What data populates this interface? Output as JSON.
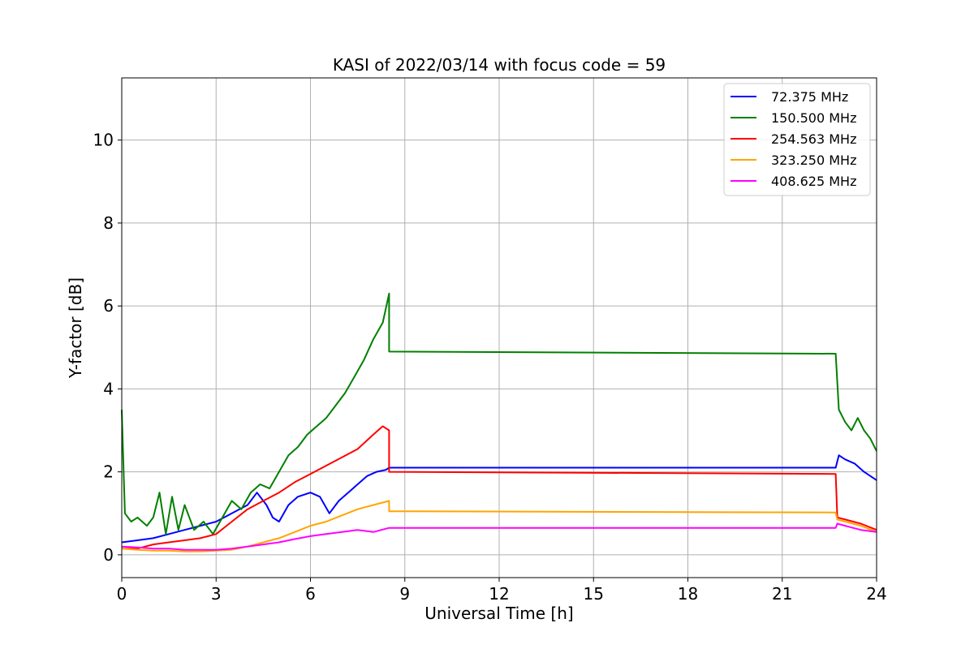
{
  "chart_data": {
    "type": "line",
    "title": "KASI of 2022/03/14 with focus code = 59",
    "xlabel": "Universal Time [h]",
    "ylabel": "Y-factor [dB]",
    "xlim": [
      0,
      24
    ],
    "ylim": [
      -0.55,
      11.5
    ],
    "xticks": [
      0,
      3,
      6,
      9,
      12,
      15,
      18,
      21,
      24
    ],
    "yticks": [
      0,
      2,
      4,
      6,
      8,
      10
    ],
    "grid": true,
    "legend_position": "top-right",
    "series": [
      {
        "name": " 72.375 MHz",
        "color": "#0000ff",
        "x": [
          0.0,
          0.5,
          1.0,
          1.5,
          2.0,
          2.5,
          3.0,
          3.5,
          4.0,
          4.3,
          4.6,
          4.8,
          5.0,
          5.3,
          5.6,
          6.0,
          6.3,
          6.6,
          6.9,
          7.2,
          7.5,
          7.8,
          8.1,
          8.4,
          8.5,
          22.7,
          22.8,
          23.0,
          23.3,
          23.6,
          24.0
        ],
        "y": [
          0.3,
          0.35,
          0.4,
          0.5,
          0.6,
          0.7,
          0.8,
          1.0,
          1.2,
          1.5,
          1.2,
          0.9,
          0.8,
          1.2,
          1.4,
          1.5,
          1.4,
          1.0,
          1.3,
          1.5,
          1.7,
          1.9,
          2.0,
          2.05,
          2.1,
          2.1,
          2.4,
          2.3,
          2.2,
          2.0,
          1.8
        ]
      },
      {
        "name": "150.500 MHz",
        "color": "#008000",
        "x": [
          0.0,
          0.1,
          0.3,
          0.5,
          0.8,
          1.0,
          1.2,
          1.4,
          1.6,
          1.8,
          2.0,
          2.3,
          2.6,
          2.9,
          3.2,
          3.5,
          3.8,
          4.1,
          4.4,
          4.7,
          5.0,
          5.3,
          5.6,
          5.9,
          6.2,
          6.5,
          6.8,
          7.1,
          7.4,
          7.7,
          8.0,
          8.3,
          8.5,
          8.5,
          22.7,
          22.8,
          23.0,
          23.2,
          23.4,
          23.6,
          23.8,
          24.0
        ],
        "y": [
          3.5,
          1.0,
          0.8,
          0.9,
          0.7,
          0.9,
          1.5,
          0.5,
          1.4,
          0.6,
          1.2,
          0.6,
          0.8,
          0.5,
          0.9,
          1.3,
          1.1,
          1.5,
          1.7,
          1.6,
          2.0,
          2.4,
          2.6,
          2.9,
          3.1,
          3.3,
          3.6,
          3.9,
          4.3,
          4.7,
          5.2,
          5.6,
          6.3,
          4.9,
          4.85,
          3.5,
          3.2,
          3.0,
          3.3,
          3.0,
          2.8,
          2.5
        ]
      },
      {
        "name": "254.563 MHz",
        "color": "#ff0000",
        "x": [
          0.0,
          0.5,
          1.0,
          1.5,
          2.0,
          2.5,
          3.0,
          3.5,
          4.0,
          4.5,
          5.0,
          5.5,
          6.0,
          6.5,
          7.0,
          7.5,
          8.0,
          8.3,
          8.5,
          8.5,
          22.7,
          22.75,
          23.0,
          23.5,
          24.0
        ],
        "y": [
          0.15,
          0.15,
          0.25,
          0.3,
          0.35,
          0.4,
          0.5,
          0.8,
          1.1,
          1.3,
          1.5,
          1.75,
          1.95,
          2.15,
          2.35,
          2.55,
          2.9,
          3.1,
          3.0,
          2.0,
          1.95,
          0.9,
          0.85,
          0.75,
          0.6
        ]
      },
      {
        "name": "323.250 MHz",
        "color": "#ffa500",
        "x": [
          0.0,
          0.5,
          1.0,
          1.5,
          2.0,
          2.5,
          3.0,
          3.5,
          4.0,
          4.5,
          5.0,
          5.5,
          6.0,
          6.5,
          7.0,
          7.5,
          8.0,
          8.5,
          8.5,
          22.7,
          22.75,
          23.0,
          23.5,
          24.0
        ],
        "y": [
          0.15,
          0.12,
          0.1,
          0.1,
          0.08,
          0.08,
          0.1,
          0.12,
          0.2,
          0.3,
          0.4,
          0.55,
          0.7,
          0.8,
          0.95,
          1.1,
          1.2,
          1.3,
          1.05,
          1.02,
          0.85,
          0.8,
          0.7,
          0.55
        ]
      },
      {
        "name": "408.625 MHz",
        "color": "#ff00ff",
        "x": [
          0.0,
          0.5,
          1.0,
          1.5,
          2.0,
          2.5,
          3.0,
          3.5,
          4.0,
          4.5,
          5.0,
          5.5,
          6.0,
          6.5,
          7.0,
          7.5,
          8.0,
          8.5,
          22.7,
          22.75,
          23.0,
          23.5,
          24.0
        ],
        "y": [
          0.2,
          0.18,
          0.15,
          0.15,
          0.12,
          0.12,
          0.12,
          0.15,
          0.2,
          0.25,
          0.3,
          0.38,
          0.45,
          0.5,
          0.55,
          0.6,
          0.55,
          0.65,
          0.65,
          0.75,
          0.7,
          0.6,
          0.55
        ]
      }
    ]
  }
}
